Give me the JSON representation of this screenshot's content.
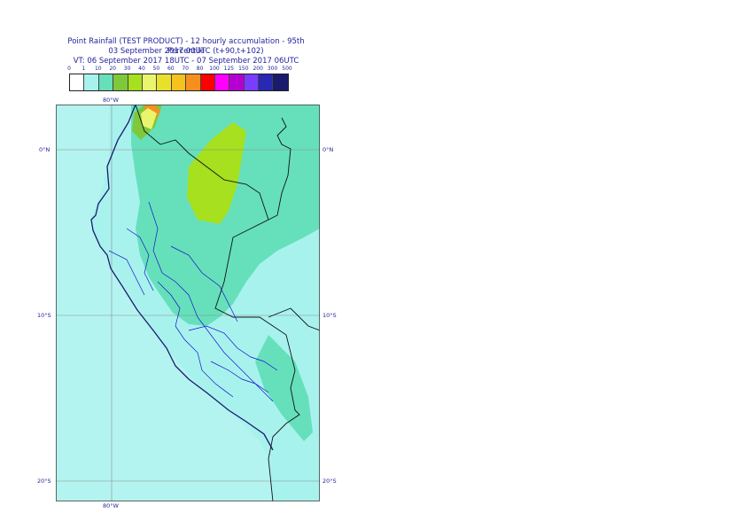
{
  "title": {
    "line1": "Point Rainfall (TEST PRODUCT) - 12 hourly accumulation - 95th Percentile",
    "line2": "03 September 2017 00UTC (t+90,t+102)",
    "line3": "VT: 06 September 2017 18UTC - 07 September 2017 06UTC"
  },
  "legend": {
    "ticks": [
      "0",
      "1",
      "10",
      "20",
      "30",
      "40",
      "50",
      "60",
      "70",
      "80",
      "100",
      "125",
      "150",
      "200",
      "300",
      "500"
    ],
    "colors": [
      "#ffffff",
      "#a8f2ee",
      "#66e0bb",
      "#7fc83c",
      "#a6e01e",
      "#eaf56e",
      "#e8e02a",
      "#f5c21e",
      "#f5901e",
      "#ff0000",
      "#ff00ff",
      "#b400d2",
      "#7a3cff",
      "#2828b4",
      "#1a1a6e"
    ]
  },
  "map": {
    "lon_labels": {
      "top": "80°W",
      "bottom": "80°W"
    },
    "lat_labels": {
      "n0": "0°N",
      "s10": "10°S",
      "s20": "20°S"
    },
    "colors": {
      "ocean": "#b4f4f0",
      "light": "#a8f2ee",
      "medium": "#66e0bb",
      "green": "#7fc83c",
      "yellowgreen": "#a6e01e",
      "orange": "#f5901e",
      "yellow": "#eaf56e"
    }
  }
}
